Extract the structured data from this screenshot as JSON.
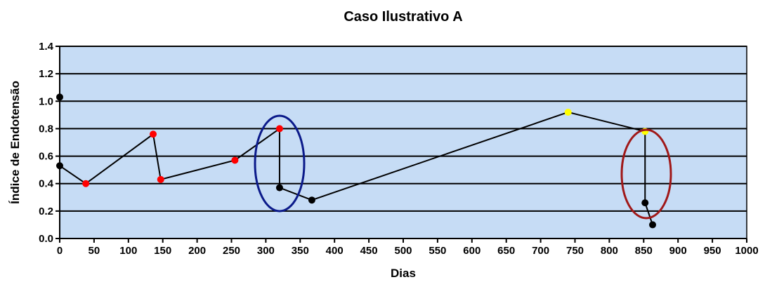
{
  "chart_data": {
    "type": "line",
    "title": "Caso Ilustrativo A",
    "xlabel": "Dias",
    "ylabel": "Índice de Endotensão",
    "x": [
      0,
      null,
      0,
      38,
      136,
      147,
      255,
      320,
      320,
      367,
      740,
      852,
      852,
      863
    ],
    "series": [
      {
        "color": "#000000",
        "values": [
          1.03,
          null,
          0.53,
          0.4,
          0.76,
          0.43,
          0.57,
          0.8,
          0.37,
          0.28,
          0.92,
          0.78,
          0.26,
          0.1
        ],
        "marker_colors": [
          "#000000",
          null,
          "#000000",
          "#ff0000",
          "#ff0000",
          "#ff0000",
          "#ff0000",
          "#ff0000",
          "#000000",
          "#000000",
          "#ffff00",
          "#ffff00",
          "#000000",
          "#000000"
        ]
      }
    ],
    "xlim": [
      0,
      1000
    ],
    "xticks": [
      0,
      50,
      100,
      150,
      200,
      250,
      300,
      350,
      400,
      450,
      500,
      550,
      600,
      650,
      700,
      750,
      800,
      850,
      900,
      950,
      1000
    ],
    "ylim": [
      0,
      1.4
    ],
    "yticks": [
      {
        "value": 0,
        "label": "0.0"
      },
      0.2,
      0.4,
      0.6,
      0.8,
      {
        "value": 1,
        "label": "1.0"
      },
      1.2,
      1.4
    ],
    "grid": true,
    "background": "#c6dcf5"
  }
}
